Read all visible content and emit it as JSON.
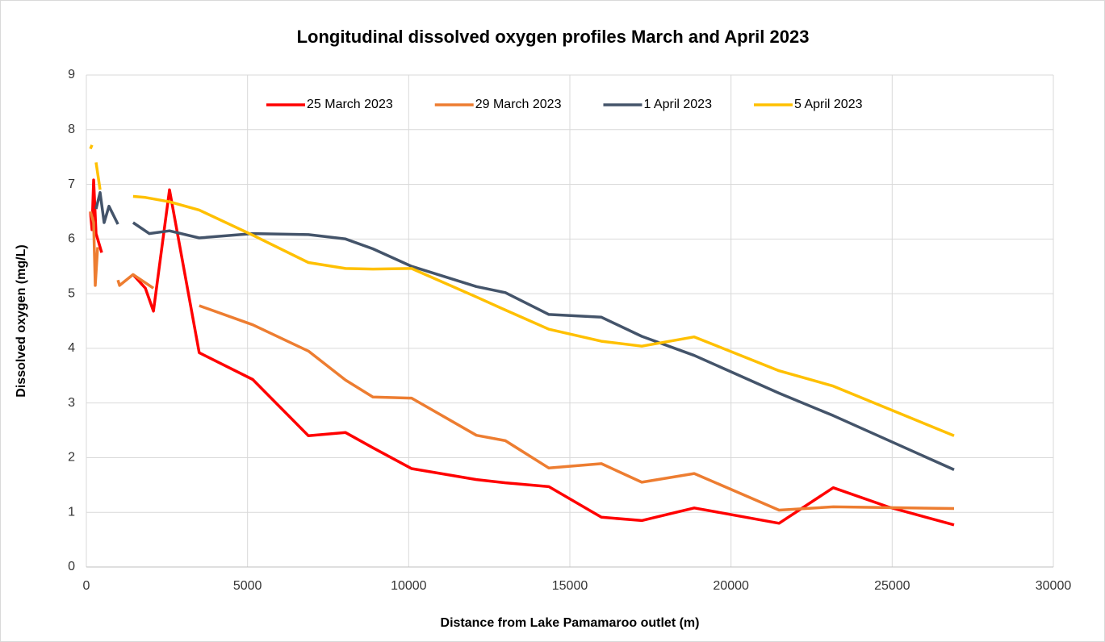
{
  "chart_data": {
    "type": "line",
    "title": "Longitudinal dissolved oxygen profiles March and April 2023",
    "x_label": "Distance from Lake Pamamaroo outlet (m)",
    "y_label": "Dissolved oxygen (mg/L)",
    "xlim": [
      0,
      30000
    ],
    "xticks": [
      0,
      5000,
      10000,
      15000,
      20000,
      25000,
      30000
    ],
    "ylim": [
      0,
      9
    ],
    "yticks": [
      0,
      1,
      2,
      3,
      4,
      5,
      6,
      7,
      8,
      9
    ],
    "grid": true,
    "legend": "top",
    "series": [
      {
        "name": "25 March 2023",
        "color": "#ff0000",
        "x": [
          125,
          175,
          225,
          300,
          475,
          null,
          1450,
          1830,
          2080,
          2580,
          3500,
          5160,
          6890,
          8040,
          8890,
          10090,
          12100,
          13000,
          14350,
          15980,
          17230,
          18860,
          21490,
          23170,
          24870,
          26920
        ],
        "values": [
          6.5,
          6.17,
          7.08,
          6.1,
          5.75,
          null,
          5.35,
          5.1,
          4.68,
          6.9,
          3.92,
          3.43,
          2.4,
          2.46,
          2.18,
          1.8,
          1.6,
          1.54,
          1.47,
          0.91,
          0.85,
          1.08,
          0.8,
          1.45,
          1.1,
          0.77
        ]
      },
      {
        "name": "29 March 2023",
        "color": "#ed7d31",
        "x": [
          125,
          225,
          275,
          350,
          null,
          980,
          1030,
          1450,
          2080,
          null,
          3500,
          5160,
          6890,
          8040,
          8890,
          10090,
          12100,
          13000,
          14350,
          15980,
          17230,
          18860,
          21490,
          23170,
          26920
        ],
        "values": [
          6.5,
          6.3,
          5.15,
          5.85,
          null,
          5.25,
          5.15,
          5.35,
          5.1,
          null,
          4.78,
          4.43,
          3.95,
          3.42,
          3.11,
          3.09,
          2.41,
          2.31,
          1.81,
          1.89,
          1.55,
          1.71,
          1.04,
          1.1,
          1.07
        ]
      },
      {
        "name": "1 April 2023",
        "color": "#44546a",
        "x": [
          300,
          425,
          550,
          700,
          980,
          null,
          1450,
          1950,
          2580,
          3500,
          5160,
          6890,
          8040,
          8890,
          10090,
          12100,
          13000,
          14350,
          15980,
          17230,
          18860,
          21490,
          23170,
          26920
        ],
        "values": [
          6.55,
          6.85,
          6.3,
          6.6,
          6.27,
          null,
          6.3,
          6.1,
          6.15,
          6.02,
          6.1,
          6.08,
          6.0,
          5.82,
          5.5,
          5.13,
          5.02,
          4.62,
          4.57,
          4.22,
          3.87,
          3.18,
          2.77,
          1.78
        ]
      },
      {
        "name": "5 April 2023",
        "color": "#ffc000",
        "x": [
          125,
          175,
          null,
          300,
          425,
          null,
          1450,
          1830,
          2580,
          3500,
          5160,
          6890,
          8040,
          8890,
          10090,
          12100,
          13000,
          14350,
          15980,
          17230,
          18860,
          21490,
          23170,
          26920
        ],
        "values": [
          7.65,
          7.72,
          null,
          7.4,
          6.9,
          null,
          6.78,
          6.76,
          6.68,
          6.53,
          6.07,
          5.57,
          5.46,
          5.45,
          5.46,
          4.94,
          4.7,
          4.35,
          4.13,
          4.04,
          4.21,
          3.59,
          3.31,
          2.4
        ]
      }
    ]
  }
}
